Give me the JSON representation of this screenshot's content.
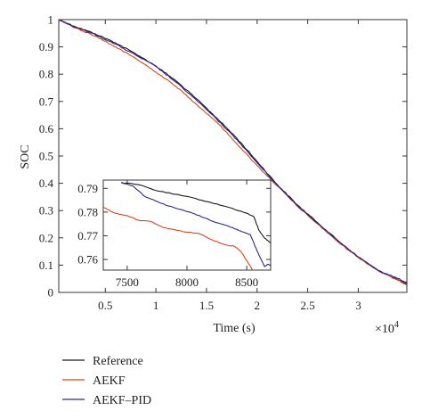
{
  "chart_data": [
    {
      "type": "line",
      "role": "main",
      "xlabel": "Time (s)",
      "ylabel": "SOC",
      "x_multiplier_label": "×10",
      "x_multiplier_exponent": "4",
      "xlim": [
        400,
        34800
      ],
      "ylim": [
        0,
        1
      ],
      "xticks": [
        5000,
        10000,
        15000,
        20000,
        25000,
        30000
      ],
      "xtick_labels": [
        "0.5",
        "1",
        "1.5",
        "2",
        "2.5",
        "3"
      ],
      "yticks": [
        0,
        0.1,
        0.2,
        0.3,
        0.4,
        0.5,
        0.6,
        0.7,
        0.8,
        0.9,
        1
      ],
      "ytick_labels": [
        "0",
        "0.1",
        "0.2",
        "0.3",
        "0.4",
        "0.5",
        "0.6",
        "0.7",
        "0.8",
        "0.9",
        "1"
      ],
      "series": [
        {
          "name": "Reference",
          "color": "#1a1a1a",
          "points": [
            [
              400,
              1.0
            ],
            [
              2000,
              0.975
            ],
            [
              4000,
              0.948
            ],
            [
              6000,
              0.915
            ],
            [
              8000,
              0.875
            ],
            [
              10000,
              0.83
            ],
            [
              12000,
              0.775
            ],
            [
              14000,
              0.71
            ],
            [
              16000,
              0.64
            ],
            [
              18000,
              0.565
            ],
            [
              20000,
              0.48
            ],
            [
              22000,
              0.395
            ],
            [
              24000,
              0.32
            ],
            [
              26000,
              0.255
            ],
            [
              28000,
              0.19
            ],
            [
              30000,
              0.13
            ],
            [
              32000,
              0.08
            ],
            [
              34000,
              0.045
            ],
            [
              34800,
              0.03
            ]
          ]
        },
        {
          "name": "AEKF",
          "color": "#d9461b",
          "points": [
            [
              400,
              1.0
            ],
            [
              2000,
              0.97
            ],
            [
              4000,
              0.94
            ],
            [
              6000,
              0.9
            ],
            [
              8000,
              0.858
            ],
            [
              10000,
              0.808
            ],
            [
              12000,
              0.755
            ],
            [
              14000,
              0.69
            ],
            [
              16000,
              0.625
            ],
            [
              18000,
              0.545
            ],
            [
              20000,
              0.465
            ],
            [
              22000,
              0.39
            ],
            [
              24000,
              0.315
            ],
            [
              26000,
              0.25
            ],
            [
              28000,
              0.185
            ],
            [
              30000,
              0.128
            ],
            [
              32000,
              0.078
            ],
            [
              34000,
              0.043
            ],
            [
              34800,
              0.028
            ]
          ]
        },
        {
          "name": "AEKF–PID",
          "color": "#2a2a8c",
          "points": [
            [
              400,
              1.0
            ],
            [
              2000,
              0.973
            ],
            [
              4000,
              0.945
            ],
            [
              6000,
              0.91
            ],
            [
              8000,
              0.87
            ],
            [
              10000,
              0.828
            ],
            [
              12000,
              0.77
            ],
            [
              14000,
              0.705
            ],
            [
              16000,
              0.635
            ],
            [
              18000,
              0.56
            ],
            [
              20000,
              0.475
            ],
            [
              22000,
              0.393
            ],
            [
              24000,
              0.318
            ],
            [
              26000,
              0.253
            ],
            [
              28000,
              0.188
            ],
            [
              30000,
              0.13
            ],
            [
              32000,
              0.08
            ],
            [
              34000,
              0.05
            ],
            [
              34800,
              0.035
            ]
          ]
        }
      ]
    },
    {
      "type": "line",
      "role": "inset",
      "xlim": [
        7300,
        8700
      ],
      "ylim": [
        0.7555,
        0.7935
      ],
      "xticks": [
        7500,
        8000,
        8500
      ],
      "xtick_labels": [
        "7500",
        "8000",
        "8500"
      ],
      "yticks": [
        0.76,
        0.77,
        0.78,
        0.79
      ],
      "ytick_labels": [
        "0.76",
        "0.77",
        "0.78",
        "0.79"
      ],
      "series": [
        {
          "name": "Reference",
          "color": "#1a1a1a",
          "points": [
            [
              7450,
              0.7925
            ],
            [
              7600,
              0.7915
            ],
            [
              7750,
              0.789
            ],
            [
              7900,
              0.7875
            ],
            [
              8050,
              0.786
            ],
            [
              8200,
              0.784
            ],
            [
              8350,
              0.782
            ],
            [
              8500,
              0.7795
            ],
            [
              8560,
              0.778
            ],
            [
              8600,
              0.7725
            ],
            [
              8650,
              0.769
            ],
            [
              8700,
              0.767
            ]
          ]
        },
        {
          "name": "AEKF",
          "color": "#d9461b",
          "points": [
            [
              7300,
              0.782
            ],
            [
              7400,
              0.7795
            ],
            [
              7500,
              0.7785
            ],
            [
              7600,
              0.7765
            ],
            [
              7700,
              0.776
            ],
            [
              7800,
              0.7735
            ],
            [
              7900,
              0.7725
            ],
            [
              8000,
              0.7715
            ],
            [
              8100,
              0.771
            ],
            [
              8200,
              0.7685
            ],
            [
              8300,
              0.7665
            ],
            [
              8400,
              0.7655
            ],
            [
              8450,
              0.7635
            ],
            [
              8500,
              0.7595
            ],
            [
              8550,
              0.7555
            ]
          ]
        },
        {
          "name": "AEKF–PID",
          "color": "#2a2a8c",
          "points": [
            [
              7450,
              0.7925
            ],
            [
              7550,
              0.791
            ],
            [
              7650,
              0.7865
            ],
            [
              7750,
              0.7845
            ],
            [
              7850,
              0.7825
            ],
            [
              7950,
              0.781
            ],
            [
              8050,
              0.7795
            ],
            [
              8150,
              0.7775
            ],
            [
              8250,
              0.7755
            ],
            [
              8350,
              0.774
            ],
            [
              8450,
              0.772
            ],
            [
              8530,
              0.7705
            ],
            [
              8570,
              0.7655
            ],
            [
              8620,
              0.76
            ],
            [
              8650,
              0.757
            ],
            [
              8680,
              0.758
            ],
            [
              8700,
              0.7575
            ]
          ]
        }
      ]
    }
  ],
  "legend": {
    "items": [
      {
        "label": "Reference",
        "color": "#1a1a1a"
      },
      {
        "label": "AEKF",
        "color": "#d9461b"
      },
      {
        "label": "AEKF–PID",
        "color": "#2a2a8c"
      }
    ]
  }
}
